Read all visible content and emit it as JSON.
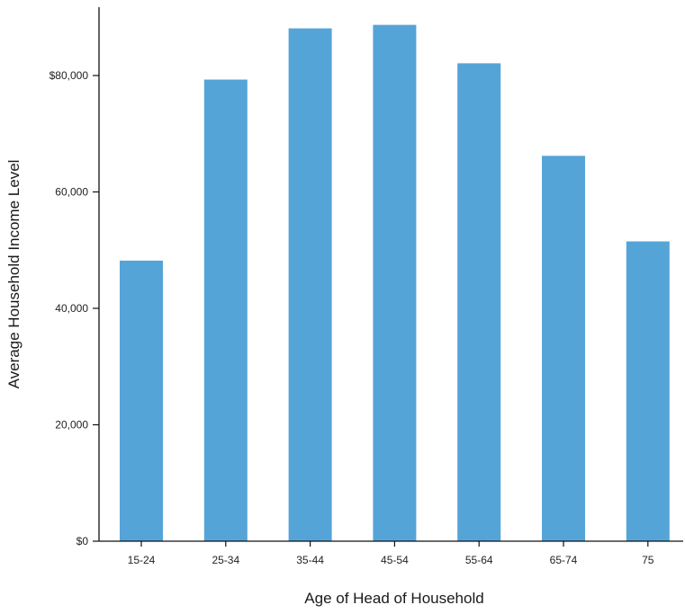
{
  "chart_data": {
    "type": "bar",
    "title": "",
    "xlabel": "Age of Head of Household",
    "ylabel": "Average Household Income Level",
    "categories": [
      "15-24",
      "25-34",
      "35-44",
      "45-54",
      "55-64",
      "65-74",
      "75"
    ],
    "values": [
      48200,
      79300,
      88100,
      88700,
      82100,
      66200,
      51500
    ],
    "ylim": [
      0,
      90000
    ],
    "y_ticks": [
      0,
      20000,
      40000,
      60000,
      80000
    ],
    "y_tick_labels": [
      "$0",
      "20,000",
      "40,000",
      "60,000",
      "$80,000"
    ],
    "grid": false,
    "legend": "none",
    "bar_color": "#55a4d8",
    "axis_color": "#111111"
  }
}
